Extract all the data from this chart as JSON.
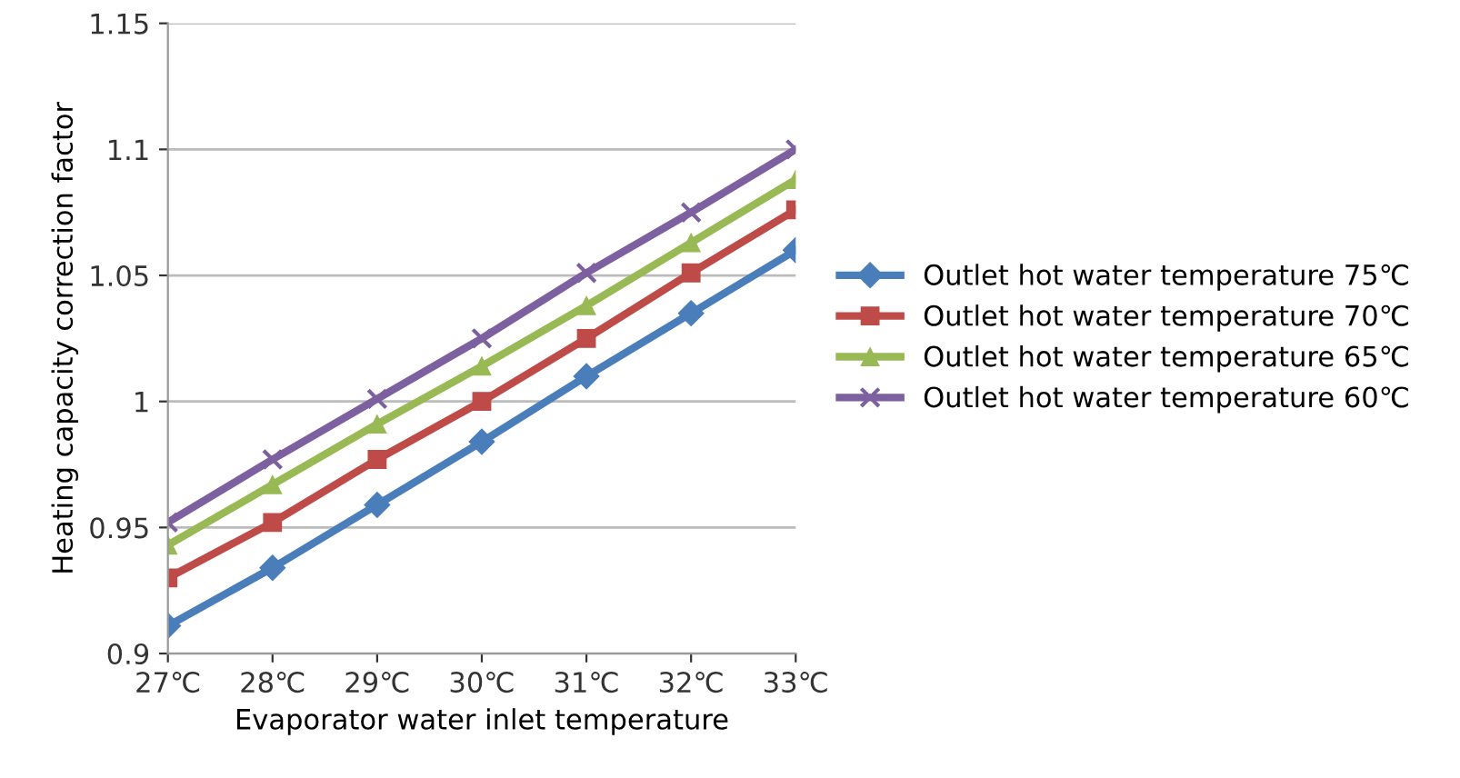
{
  "chart_data": {
    "type": "line",
    "xlabel": "Evaporator water inlet temperature",
    "ylabel": "Heating capacity correction factor",
    "categories": [
      "27℃",
      "28℃",
      "29℃",
      "30℃",
      "31℃",
      "32℃",
      "33℃"
    ],
    "series": [
      {
        "name": "Outlet hot water temperature 75℃",
        "color": "#4a7ebb",
        "marker": "diamond",
        "values": [
          0.911,
          0.934,
          0.959,
          0.984,
          1.01,
          1.035,
          1.06
        ]
      },
      {
        "name": "Outlet hot water temperature 70℃",
        "color": "#be4b48",
        "marker": "square",
        "values": [
          0.93,
          0.952,
          0.977,
          1.0,
          1.025,
          1.051,
          1.076
        ]
      },
      {
        "name": "Outlet hot water temperature 65℃",
        "color": "#98b954",
        "marker": "triangle",
        "values": [
          0.943,
          0.967,
          0.991,
          1.014,
          1.038,
          1.063,
          1.088
        ]
      },
      {
        "name": "Outlet hot water temperature 60℃",
        "color": "#7d60a0",
        "marker": "cross",
        "values": [
          0.952,
          0.977,
          1.001,
          1.025,
          1.051,
          1.075,
          1.1
        ]
      }
    ],
    "ylim": [
      0.9,
      1.15
    ],
    "yticks": [
      0.9,
      0.95,
      1,
      1.05,
      1.1,
      1.15
    ],
    "grid": "y",
    "legend": "right",
    "line_style": "solid"
  }
}
